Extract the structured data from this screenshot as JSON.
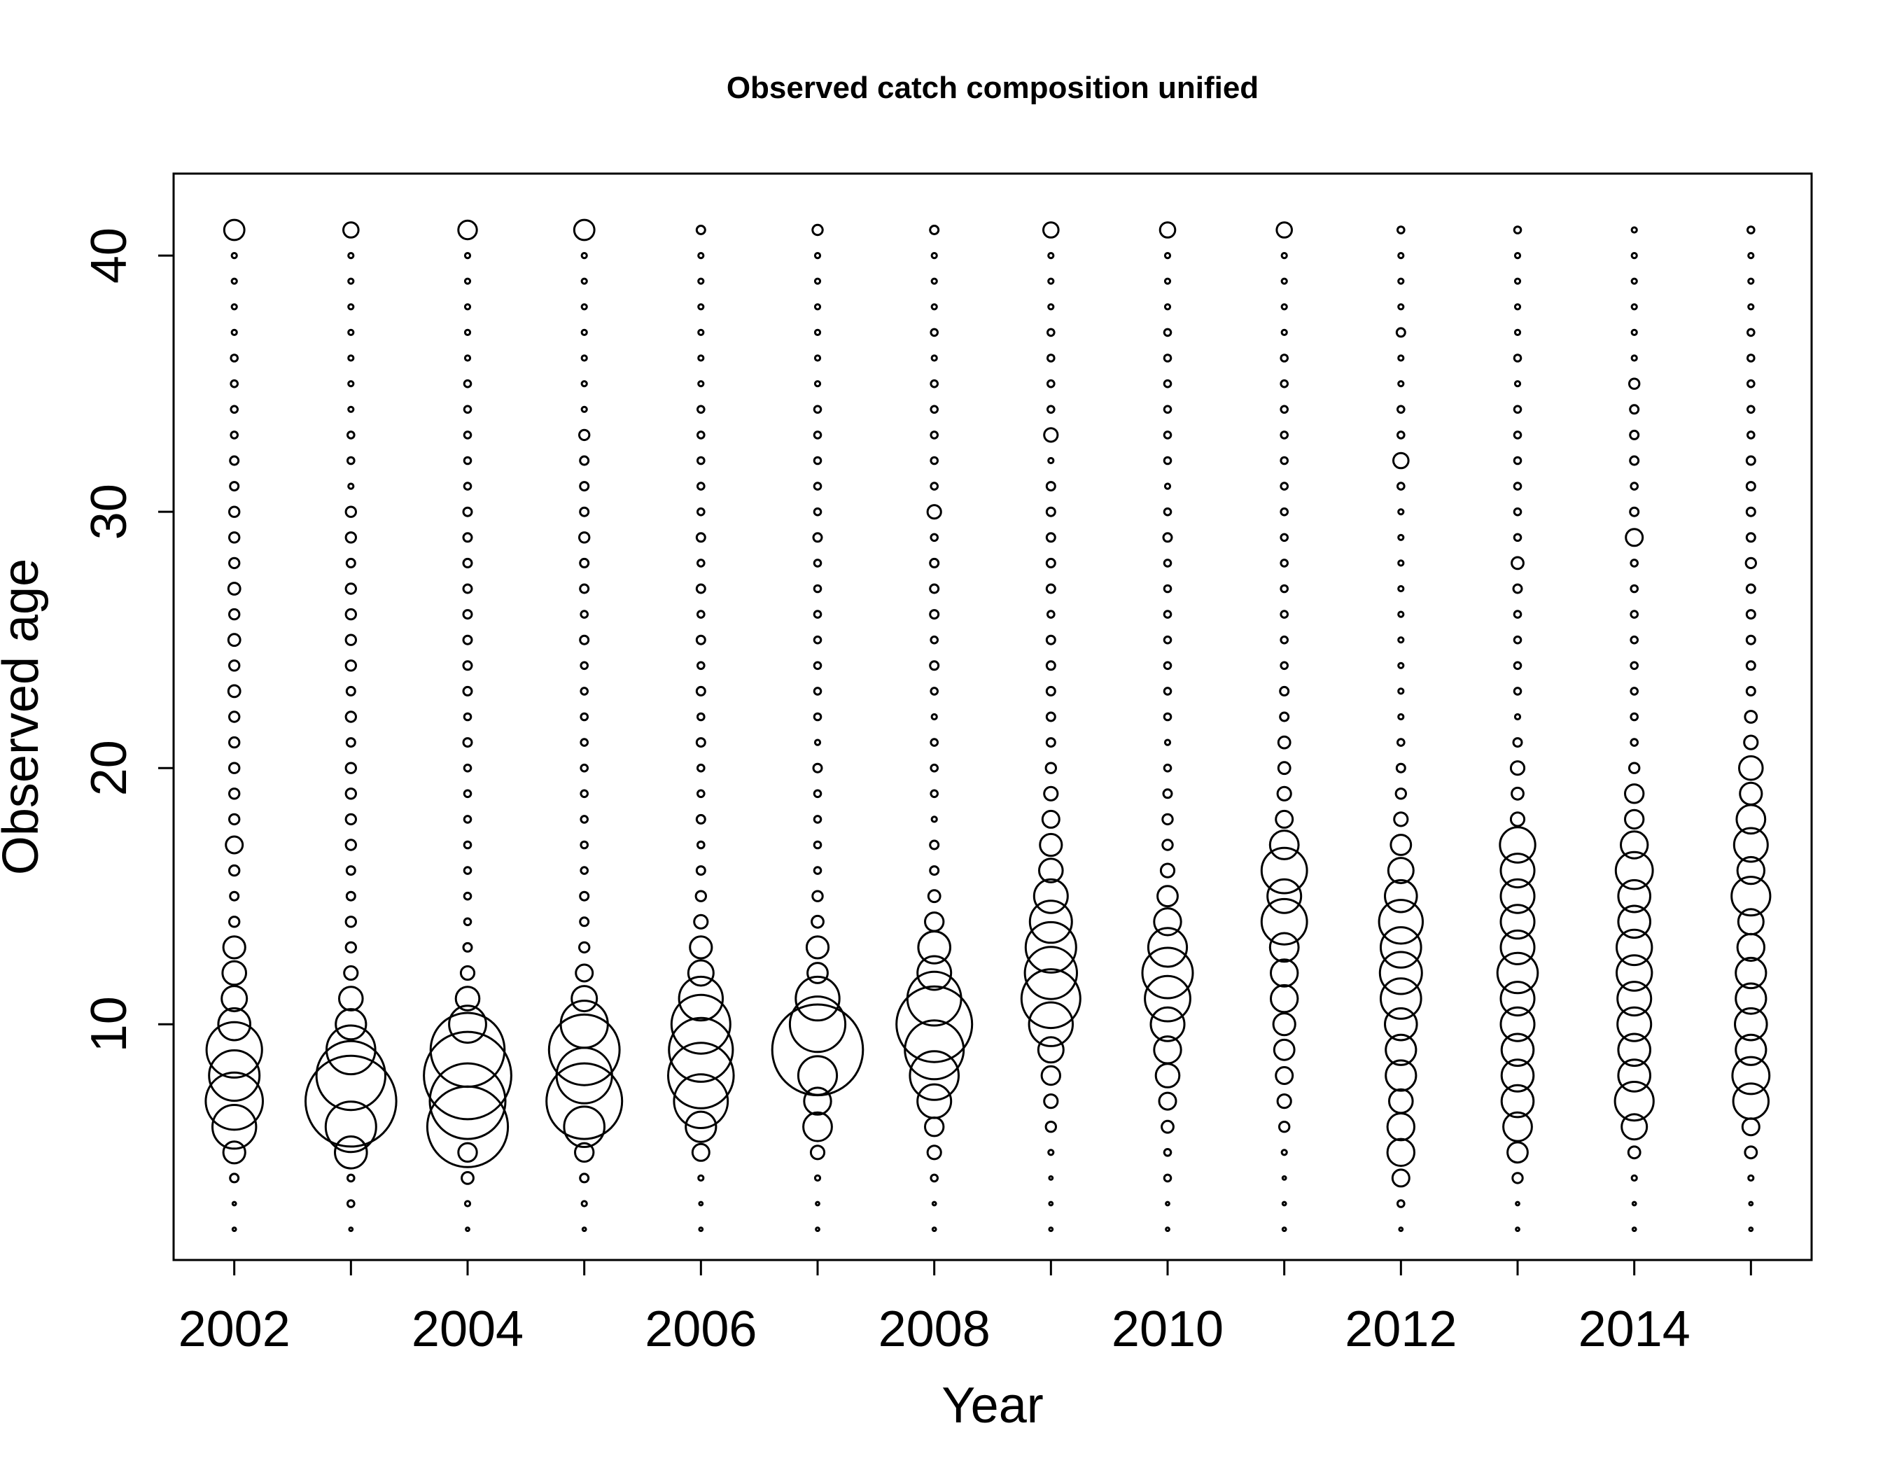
{
  "chart_data": {
    "type": "scatter",
    "title": "Observed catch composition unified",
    "xlabel": "Year",
    "ylabel": "Observed age",
    "xlim": [
      2001.48,
      2015.52
    ],
    "ylim": [
      0.8,
      43.2
    ],
    "x_ticks": [
      2002,
      2004,
      2006,
      2008,
      2010,
      2012,
      2014
    ],
    "y_ticks": [
      10,
      20,
      30,
      40
    ],
    "grid": false,
    "legend": "none",
    "encoding": "bubble radius proportional to the observed proportion",
    "age_min": 2,
    "series": [
      {
        "name": "2002",
        "x": 2002,
        "sizes": [
          0.2,
          0.2,
          0.5,
          1.3,
          2.6,
          3.4,
          3.0,
          3.3,
          1.9,
          1.5,
          1.4,
          1.3,
          0.6,
          0.5,
          0.6,
          1.0,
          0.6,
          0.6,
          0.6,
          0.6,
          0.6,
          0.7,
          0.6,
          0.7,
          0.6,
          0.7,
          0.6,
          0.6,
          0.6,
          0.5,
          0.5,
          0.4,
          0.4,
          0.4,
          0.4,
          0.3,
          0.3,
          0.3,
          0.3,
          1.2
        ]
      },
      {
        "name": "2003",
        "x": 2003,
        "sizes": [
          0.2,
          0.4,
          0.4,
          1.9,
          3.0,
          5.4,
          4.1,
          2.9,
          1.8,
          1.4,
          0.8,
          0.6,
          0.6,
          0.5,
          0.5,
          0.6,
          0.6,
          0.6,
          0.6,
          0.5,
          0.6,
          0.5,
          0.6,
          0.6,
          0.6,
          0.6,
          0.5,
          0.6,
          0.6,
          0.3,
          0.4,
          0.4,
          0.3,
          0.3,
          0.3,
          0.3,
          0.3,
          0.3,
          0.3,
          0.9
        ]
      },
      {
        "name": "2004",
        "x": 2004,
        "sizes": [
          0.2,
          0.3,
          0.7,
          1.1,
          4.8,
          4.5,
          5.2,
          4.4,
          2.2,
          1.4,
          0.8,
          0.5,
          0.4,
          0.4,
          0.4,
          0.4,
          0.4,
          0.4,
          0.4,
          0.5,
          0.4,
          0.5,
          0.5,
          0.5,
          0.5,
          0.5,
          0.5,
          0.5,
          0.5,
          0.4,
          0.4,
          0.4,
          0.4,
          0.4,
          0.3,
          0.3,
          0.3,
          0.3,
          0.3,
          1.1
        ]
      },
      {
        "name": "2005",
        "x": 2005,
        "sizes": [
          0.2,
          0.3,
          0.5,
          1.1,
          2.4,
          4.5,
          3.3,
          4.2,
          2.8,
          1.5,
          1.0,
          0.6,
          0.5,
          0.5,
          0.4,
          0.4,
          0.4,
          0.4,
          0.4,
          0.4,
          0.4,
          0.4,
          0.4,
          0.5,
          0.4,
          0.5,
          0.5,
          0.6,
          0.5,
          0.5,
          0.5,
          0.6,
          0.3,
          0.3,
          0.3,
          0.3,
          0.3,
          0.3,
          0.3,
          1.2
        ]
      },
      {
        "name": "2006",
        "x": 2006,
        "sizes": [
          0.2,
          0.2,
          0.3,
          1.0,
          1.8,
          3.2,
          3.9,
          3.8,
          3.5,
          2.6,
          1.5,
          1.3,
          0.8,
          0.6,
          0.5,
          0.4,
          0.5,
          0.4,
          0.4,
          0.5,
          0.4,
          0.5,
          0.4,
          0.5,
          0.4,
          0.5,
          0.4,
          0.5,
          0.4,
          0.4,
          0.4,
          0.4,
          0.4,
          0.3,
          0.3,
          0.3,
          0.3,
          0.3,
          0.3,
          0.5
        ]
      },
      {
        "name": "2007",
        "x": 2007,
        "sizes": [
          0.2,
          0.2,
          0.3,
          0.8,
          1.7,
          1.6,
          2.3,
          5.4,
          3.3,
          2.6,
          1.2,
          1.3,
          0.7,
          0.6,
          0.4,
          0.4,
          0.4,
          0.4,
          0.5,
          0.3,
          0.4,
          0.4,
          0.4,
          0.4,
          0.4,
          0.4,
          0.4,
          0.5,
          0.4,
          0.4,
          0.4,
          0.4,
          0.4,
          0.3,
          0.3,
          0.3,
          0.3,
          0.3,
          0.3,
          0.6
        ]
      },
      {
        "name": "2008",
        "x": 2008,
        "sizes": [
          0.2,
          0.2,
          0.4,
          0.8,
          1.1,
          2.0,
          2.9,
          3.5,
          4.5,
          3.2,
          2.0,
          1.9,
          1.1,
          0.7,
          0.5,
          0.5,
          0.3,
          0.4,
          0.4,
          0.4,
          0.3,
          0.4,
          0.5,
          0.4,
          0.5,
          0.5,
          0.5,
          0.4,
          0.8,
          0.4,
          0.4,
          0.4,
          0.4,
          0.4,
          0.3,
          0.4,
          0.3,
          0.3,
          0.3,
          0.5
        ]
      },
      {
        "name": "2009",
        "x": 2009,
        "sizes": [
          0.2,
          0.2,
          0.2,
          0.3,
          0.6,
          0.8,
          1.1,
          1.5,
          2.6,
          3.5,
          3.1,
          3.0,
          2.5,
          2.0,
          1.4,
          1.3,
          1.0,
          0.8,
          0.6,
          0.5,
          0.5,
          0.5,
          0.5,
          0.5,
          0.4,
          0.5,
          0.5,
          0.5,
          0.5,
          0.5,
          0.3,
          0.8,
          0.4,
          0.4,
          0.4,
          0.4,
          0.3,
          0.3,
          0.3,
          0.9
        ]
      },
      {
        "name": "2010",
        "x": 2010,
        "sizes": [
          0.2,
          0.2,
          0.4,
          0.4,
          0.7,
          1.0,
          1.4,
          1.6,
          2.0,
          2.7,
          3.0,
          2.3,
          1.6,
          1.2,
          0.8,
          0.6,
          0.6,
          0.5,
          0.4,
          0.3,
          0.4,
          0.4,
          0.4,
          0.4,
          0.4,
          0.4,
          0.4,
          0.5,
          0.4,
          0.3,
          0.4,
          0.4,
          0.4,
          0.4,
          0.4,
          0.4,
          0.3,
          0.3,
          0.3,
          0.9
        ]
      },
      {
        "name": "2011",
        "x": 2011,
        "sizes": [
          0.2,
          0.2,
          0.2,
          0.3,
          0.6,
          0.8,
          1.0,
          1.2,
          1.3,
          1.6,
          1.6,
          1.7,
          2.7,
          2.0,
          2.7,
          1.7,
          1.0,
          0.8,
          0.7,
          0.7,
          0.5,
          0.5,
          0.4,
          0.4,
          0.4,
          0.4,
          0.4,
          0.4,
          0.4,
          0.4,
          0.4,
          0.4,
          0.4,
          0.4,
          0.4,
          0.3,
          0.3,
          0.3,
          0.3,
          0.9
        ]
      },
      {
        "name": "2012",
        "x": 2012,
        "sizes": [
          0.2,
          0.4,
          1.0,
          1.6,
          1.6,
          1.4,
          1.8,
          1.8,
          1.9,
          2.4,
          2.5,
          2.4,
          2.6,
          1.9,
          1.5,
          1.2,
          0.8,
          0.6,
          0.5,
          0.4,
          0.3,
          0.3,
          0.3,
          0.3,
          0.3,
          0.3,
          0.3,
          0.3,
          0.3,
          0.4,
          0.9,
          0.4,
          0.4,
          0.3,
          0.3,
          0.5,
          0.3,
          0.3,
          0.3,
          0.4
        ]
      },
      {
        "name": "2013",
        "x": 2013,
        "sizes": [
          0.2,
          0.2,
          0.6,
          1.2,
          1.7,
          1.9,
          1.9,
          1.9,
          2.0,
          2.0,
          2.4,
          2.0,
          2.0,
          2.0,
          2.0,
          2.1,
          0.8,
          0.7,
          0.8,
          0.5,
          0.3,
          0.4,
          0.4,
          0.4,
          0.4,
          0.5,
          0.7,
          0.4,
          0.4,
          0.4,
          0.4,
          0.4,
          0.4,
          0.3,
          0.4,
          0.3,
          0.3,
          0.3,
          0.3,
          0.4
        ]
      },
      {
        "name": "2014",
        "x": 2014,
        "sizes": [
          0.2,
          0.2,
          0.3,
          0.7,
          1.5,
          2.3,
          1.9,
          1.9,
          2.0,
          2.0,
          2.1,
          2.1,
          1.9,
          1.9,
          2.2,
          1.6,
          1.1,
          1.1,
          0.6,
          0.4,
          0.4,
          0.4,
          0.4,
          0.4,
          0.4,
          0.4,
          0.4,
          1.0,
          0.5,
          0.4,
          0.5,
          0.5,
          0.5,
          0.6,
          0.3,
          0.3,
          0.3,
          0.3,
          0.3,
          0.3
        ]
      },
      {
        "name": "2015",
        "x": 2015,
        "sizes": [
          0.2,
          0.2,
          0.3,
          0.7,
          1.0,
          2.1,
          2.2,
          1.8,
          1.9,
          1.8,
          1.8,
          1.6,
          1.5,
          2.3,
          1.6,
          2.0,
          1.7,
          1.3,
          1.4,
          0.8,
          0.7,
          0.5,
          0.5,
          0.5,
          0.5,
          0.5,
          0.6,
          0.5,
          0.5,
          0.5,
          0.5,
          0.4,
          0.4,
          0.4,
          0.4,
          0.4,
          0.3,
          0.3,
          0.3,
          0.4
        ]
      }
    ]
  }
}
